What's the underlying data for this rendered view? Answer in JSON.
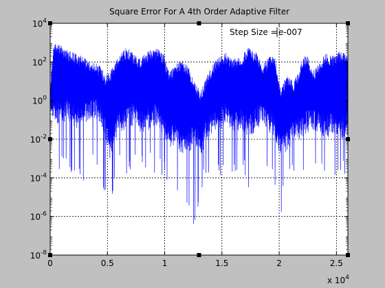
{
  "chart_data": {
    "type": "line",
    "title": "Square Error For A 4th Order Adaptive Filter",
    "annotation": "Step Size = ",
    "annotation_value": "e-007",
    "xlabel": "",
    "ylabel": "",
    "x_exponent_base": "x 10",
    "x_exponent_power": "4",
    "xlim": [
      0,
      26000
    ],
    "ylim": [
      1e-08,
      10000
    ],
    "yscale": "log",
    "grid": true,
    "xticks": [
      {
        "value": 0,
        "label": "0"
      },
      {
        "value": 5000,
        "label": "0.5"
      },
      {
        "value": 10000,
        "label": "1"
      },
      {
        "value": 15000,
        "label": "1.5"
      },
      {
        "value": 20000,
        "label": "2"
      },
      {
        "value": 25000,
        "label": "2.5"
      }
    ],
    "yticks": [
      {
        "value": 1e-08,
        "base": "10",
        "exp": "-8"
      },
      {
        "value": 1e-06,
        "base": "10",
        "exp": "-6"
      },
      {
        "value": 0.0001,
        "base": "10",
        "exp": "-4"
      },
      {
        "value": 0.01,
        "base": "10",
        "exp": "-2"
      },
      {
        "value": 1,
        "base": "10",
        "exp": "0"
      },
      {
        "value": 100,
        "base": "10",
        "exp": "2"
      },
      {
        "value": 10000,
        "base": "10",
        "exp": "4"
      }
    ],
    "series": [
      {
        "color": "#0000ff",
        "envelope": {
          "x": [
            0,
            300,
            800,
            1500,
            2200,
            2800,
            3200,
            3800,
            4400,
            4800,
            5200,
            6000,
            6700,
            7200,
            7800,
            8600,
            9300,
            9900,
            10400,
            11000,
            11600,
            12200,
            12600,
            13100,
            13700,
            14200,
            14800,
            15400,
            16000,
            16700,
            17300,
            18000,
            18600,
            19200,
            19600,
            20100,
            20700,
            21300,
            21900,
            22400,
            22900,
            23500,
            24100,
            24700,
            25300,
            25700,
            26000
          ],
          "upper": [
            5,
            1000,
            800,
            400,
            300,
            200,
            150,
            100,
            60,
            20,
            30,
            200,
            600,
            300,
            150,
            400,
            500,
            300,
            30,
            80,
            150,
            40,
            10,
            3,
            20,
            80,
            200,
            300,
            150,
            200,
            600,
            300,
            80,
            200,
            300,
            5,
            20,
            10,
            80,
            300,
            30,
            100,
            300,
            200,
            400,
            300,
            300
          ],
          "body_low": [
            0.3,
            0.1,
            0.05,
            0.1,
            0.03,
            0.05,
            0.05,
            0.1,
            0.05,
            0.01,
            0.001,
            0.02,
            0.03,
            0.05,
            0.02,
            0.03,
            0.05,
            0.01,
            0.003,
            0.005,
            0.001,
            0.002,
            0.005,
            0.001,
            0.01,
            0.02,
            0.03,
            0.05,
            0.02,
            0.03,
            0.01,
            0.03,
            0.05,
            0.02,
            0.01,
            0.001,
            0.002,
            0.01,
            0.01,
            0.02,
            0.03,
            0.02,
            0.01,
            0.02,
            0.01,
            0.01,
            0.02
          ],
          "deep_low": [
            0.001,
            0.0003,
            0.0001,
            0.0003,
            0.0001,
            3e-05,
            0.0001,
            0.0003,
            0.0001,
            1e-05,
            1e-06,
            0.0003,
            0.0001,
            0.0003,
            0.0001,
            0.0003,
            0.0001,
            0.0001,
            1e-05,
            1e-05,
            3e-06,
            1e-06,
            3e-07,
            1e-05,
            0.0001,
            0.0003,
            0.0001,
            0.0003,
            0.0001,
            0.0003,
            3e-05,
            0.0001,
            0.0003,
            0.0001,
            3e-05,
            1e-06,
            3e-05,
            0.0001,
            0.0001,
            0.0003,
            0.0001,
            0.0001,
            3e-05,
            0.0001,
            0.0001,
            0.0001,
            0.001
          ]
        }
      }
    ]
  },
  "colors": {
    "figure_bg": "#c0c0c0",
    "axes_bg": "#ffffff",
    "line": "#0000ff",
    "grid": "#000000"
  }
}
